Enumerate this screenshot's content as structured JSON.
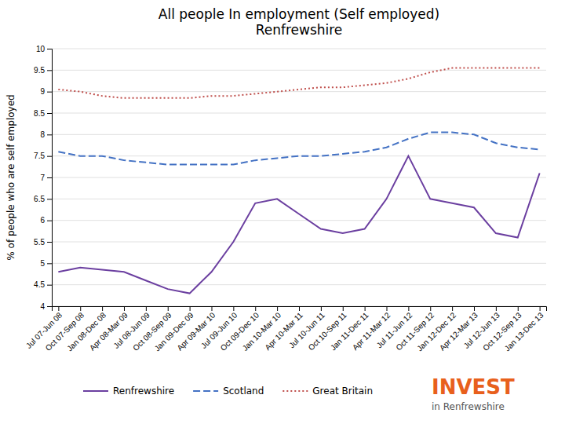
{
  "chart_data": {
    "type": "line",
    "title": "All people In employment (Self employed)\nRenfrewshire",
    "y_label": "% of people who are self employed",
    "categories": [
      "Jul 07-Jun 08",
      "Oct 07-Sep 08",
      "Jan 08-Dec 08",
      "Apr 08-Mar 09",
      "Jul 08-Jun 09",
      "Oct 08-Sep 09",
      "Jan 09-Dec 09",
      "Apr 09-Mar 10",
      "Jul 09-Jun 10",
      "Oct 09-Dec 10",
      "Jan 10-Mar 10",
      "Apr 10-Mar 11",
      "Jul 10-Jun 11",
      "Oct 10-Sep 11",
      "Jan 11-Dec 11",
      "Apr 11-Mar 12",
      "Jul 11-Jun 12",
      "Oct 11-Sep 12",
      "Jan 12-Dec 12",
      "Apr 12-Mar 13",
      "Jul 12-Jun 13",
      "Oct 12-Sep 13",
      "Jan 13-Dec 13"
    ],
    "series": [
      {
        "name": "Renfrewshire",
        "color": "#6B3FA0",
        "line_style": "solid",
        "values": [
          4.8,
          4.9,
          4.85,
          4.8,
          4.6,
          4.4,
          4.3,
          4.8,
          5.5,
          6.4,
          6.5,
          6.15,
          5.8,
          5.7,
          5.8,
          6.5,
          7.5,
          6.5,
          6.4,
          6.3,
          5.7,
          5.6,
          7.1
        ]
      },
      {
        "name": "Scotland",
        "color": "#4472C4",
        "line_style": "dashed",
        "values": [
          7.6,
          7.5,
          7.5,
          7.4,
          7.35,
          7.3,
          7.3,
          7.3,
          7.3,
          7.4,
          7.45,
          7.5,
          7.5,
          7.55,
          7.6,
          7.7,
          7.9,
          8.05,
          8.05,
          8.0,
          7.8,
          7.7,
          7.65
        ]
      },
      {
        "name": "Great Britain",
        "color": "#C0504D",
        "line_style": "dotted",
        "values": [
          9.05,
          9.0,
          8.9,
          8.85,
          8.85,
          8.85,
          8.85,
          8.9,
          8.9,
          8.95,
          9.0,
          9.05,
          9.1,
          9.1,
          9.15,
          9.2,
          9.3,
          9.45,
          9.55,
          9.55,
          9.55,
          9.55,
          9.55
        ]
      }
    ],
    "ylim": [
      4,
      10
    ],
    "yticks": [
      4,
      4.5,
      5,
      5.5,
      6,
      6.5,
      7,
      7.5,
      8,
      8.5,
      9,
      9.5,
      10
    ],
    "grid": true,
    "legend": "bottom",
    "annotations": [
      "INVEST",
      "in Renfrewshire"
    ]
  }
}
